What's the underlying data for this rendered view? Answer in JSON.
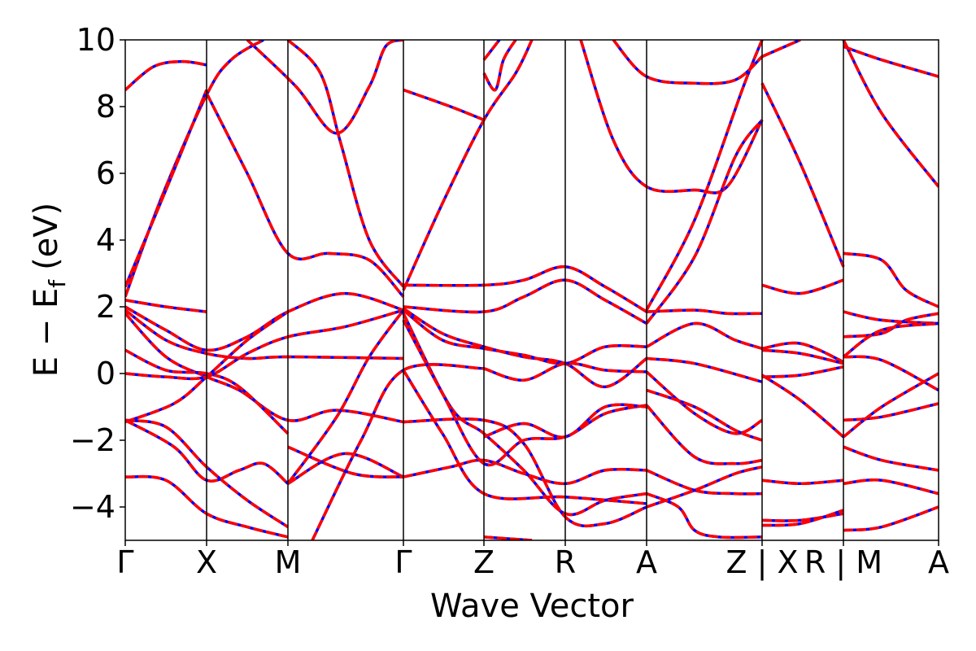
{
  "chart_data": {
    "type": "line",
    "title": "",
    "xlabel": "Wave Vector",
    "ylabel_main": "E − E",
    "ylabel_sub": "f",
    "ylabel_unit": "(eV)",
    "ylim": [
      -5,
      10
    ],
    "yticks": [
      -4,
      -2,
      0,
      2,
      4,
      6,
      8,
      10
    ],
    "ytick_labels": [
      "−4",
      "−2",
      "0",
      "2",
      "4",
      "6",
      "8",
      "10"
    ],
    "xlim": [
      0,
      10
    ],
    "kpoints": [
      {
        "label": "Γ",
        "x": 0.0
      },
      {
        "label": "X",
        "x": 1.0
      },
      {
        "label": "M",
        "x": 2.0
      },
      {
        "label": "Γ",
        "x": 3.42
      },
      {
        "label": "Z",
        "x": 4.41
      },
      {
        "label": "R",
        "x": 5.41
      },
      {
        "label": "A",
        "x": 6.41
      },
      {
        "label": "Z | X",
        "x": 7.83
      },
      {
        "label": "R | M",
        "x": 8.83
      },
      {
        "label": "A",
        "x": 10.0
      }
    ],
    "grid": false,
    "legend": "none",
    "series_styles": [
      {
        "color": "#0000ff",
        "style": "solid"
      },
      {
        "color": "#ff0000",
        "style": "dashed"
      }
    ],
    "segments": [
      [
        [
          0,
          8.5
        ],
        [
          0.35,
          9.2
        ],
        [
          0.7,
          9.35
        ],
        [
          1.0,
          9.25
        ]
      ],
      [
        [
          0,
          2.3
        ],
        [
          0.45,
          5.3
        ],
        [
          1.0,
          8.35
        ],
        [
          1.3,
          9.4
        ],
        [
          1.7,
          10.0
        ]
      ],
      [
        [
          0,
          2.6
        ],
        [
          0.5,
          5.5
        ],
        [
          1.0,
          8.5
        ]
      ],
      [
        [
          0,
          2.2
        ],
        [
          0.5,
          2.0
        ],
        [
          1.0,
          1.85
        ]
      ],
      [
        [
          0,
          2.0
        ],
        [
          0.5,
          1.3
        ],
        [
          1.0,
          0.7
        ],
        [
          1.5,
          1.1
        ],
        [
          2.0,
          1.85
        ],
        [
          2.7,
          2.4
        ],
        [
          3.42,
          1.9
        ]
      ],
      [
        [
          0,
          1.9
        ],
        [
          0.5,
          1.0
        ],
        [
          1.0,
          0.6
        ],
        [
          1.5,
          0.45
        ],
        [
          2.0,
          0.5
        ],
        [
          3.42,
          0.45
        ]
      ],
      [
        [
          0,
          1.8
        ],
        [
          0.5,
          0.5
        ],
        [
          1.0,
          -0.1
        ],
        [
          1.4,
          -0.5
        ],
        [
          2.0,
          -1.4
        ],
        [
          2.6,
          -1.1
        ],
        [
          3.42,
          -1.45
        ]
      ],
      [
        [
          0,
          0.7
        ],
        [
          0.5,
          0.1
        ],
        [
          1.0,
          0.0
        ],
        [
          1.4,
          -0.4
        ],
        [
          2.0,
          -1.8
        ]
      ],
      [
        [
          0,
          0.0
        ],
        [
          0.5,
          -0.1
        ],
        [
          1.0,
          -0.1
        ],
        [
          1.5,
          0.6
        ],
        [
          2.0,
          1.1
        ],
        [
          2.7,
          1.4
        ],
        [
          3.42,
          1.9
        ]
      ],
      [
        [
          0,
          -1.4
        ],
        [
          0.5,
          -1.6
        ],
        [
          1.0,
          -2.8
        ],
        [
          1.5,
          -3.8
        ],
        [
          2.0,
          -4.6
        ]
      ],
      [
        [
          0,
          -3.1
        ],
        [
          0.5,
          -3.2
        ],
        [
          1.0,
          -4.2
        ],
        [
          1.5,
          -4.6
        ],
        [
          2.0,
          -4.9
        ]
      ],
      [
        [
          0,
          -1.45
        ],
        [
          0.6,
          -0.9
        ],
        [
          1.0,
          -0.1
        ],
        [
          1.5,
          1.0
        ],
        [
          2.0,
          1.85
        ]
      ],
      [
        [
          0,
          -1.4
        ],
        [
          0.6,
          -2.2
        ],
        [
          1.0,
          -3.2
        ],
        [
          1.4,
          -2.9
        ],
        [
          1.7,
          -2.7
        ],
        [
          2.0,
          -3.3
        ]
      ],
      [
        [
          1.0,
          8.4
        ],
        [
          1.5,
          6.0
        ],
        [
          2.0,
          3.6
        ],
        [
          2.5,
          3.6
        ],
        [
          3.0,
          3.4
        ],
        [
          3.42,
          2.3
        ]
      ],
      [
        [
          1.5,
          10.0
        ],
        [
          2.1,
          8.6
        ],
        [
          2.6,
          7.2
        ],
        [
          3.0,
          8.6
        ],
        [
          3.2,
          9.8
        ],
        [
          3.42,
          10.0
        ]
      ],
      [
        [
          2.0,
          10.0
        ],
        [
          2.4,
          9.0
        ],
        [
          2.65,
          6.9
        ],
        [
          3.0,
          4.0
        ],
        [
          3.42,
          2.6
        ]
      ],
      [
        [
          2.0,
          -3.3
        ],
        [
          2.6,
          -1.3
        ],
        [
          3.0,
          0.5
        ],
        [
          3.42,
          1.9
        ]
      ],
      [
        [
          2.0,
          -3.3
        ],
        [
          2.7,
          -2.4
        ],
        [
          3.42,
          -3.1
        ]
      ],
      [
        [
          2.0,
          -2.2
        ],
        [
          2.8,
          -3.0
        ],
        [
          3.42,
          -3.1
        ]
      ],
      [
        [
          2.3,
          -5.0
        ],
        [
          2.9,
          -2.0
        ],
        [
          3.42,
          0.1
        ],
        [
          4.41,
          0.15
        ]
      ],
      [
        [
          3.42,
          8.5
        ],
        [
          4.0,
          8.0
        ],
        [
          4.41,
          7.6
        ]
      ],
      [
        [
          3.42,
          2.5
        ],
        [
          3.9,
          5.1
        ],
        [
          4.41,
          7.6
        ],
        [
          4.8,
          9.0
        ],
        [
          5.0,
          10.0
        ]
      ],
      [
        [
          3.42,
          2.65
        ],
        [
          4.41,
          2.65
        ],
        [
          4.9,
          2.8
        ],
        [
          5.41,
          3.2
        ],
        [
          5.9,
          2.6
        ],
        [
          6.41,
          1.85
        ]
      ],
      [
        [
          3.42,
          2.0
        ],
        [
          4.41,
          1.85
        ],
        [
          4.9,
          2.3
        ],
        [
          5.41,
          2.8
        ],
        [
          5.9,
          2.2
        ],
        [
          6.41,
          1.5
        ]
      ],
      [
        [
          3.42,
          1.95
        ],
        [
          3.9,
          1.2
        ],
        [
          4.41,
          0.8
        ],
        [
          4.9,
          0.5
        ],
        [
          5.41,
          0.3
        ],
        [
          5.9,
          -0.4
        ],
        [
          6.41,
          0.45
        ]
      ],
      [
        [
          3.42,
          1.9
        ],
        [
          3.9,
          1.0
        ],
        [
          4.41,
          0.75
        ],
        [
          4.9,
          0.55
        ],
        [
          5.41,
          0.3
        ],
        [
          5.9,
          0.8
        ],
        [
          6.41,
          0.8
        ]
      ],
      [
        [
          3.42,
          1.8
        ],
        [
          4.0,
          -1.0
        ],
        [
          4.41,
          -1.8
        ],
        [
          4.9,
          -2.9
        ],
        [
          5.41,
          -4.2
        ],
        [
          5.9,
          -3.8
        ],
        [
          6.41,
          -3.6
        ]
      ],
      [
        [
          3.42,
          -1.45
        ],
        [
          4.41,
          -1.4
        ],
        [
          4.9,
          -2.1
        ],
        [
          5.41,
          -4.3
        ],
        [
          5.9,
          -4.5
        ],
        [
          6.41,
          -4.0
        ]
      ],
      [
        [
          3.42,
          -3.1
        ],
        [
          4.0,
          -2.8
        ],
        [
          4.41,
          -2.6
        ],
        [
          4.9,
          -3.0
        ],
        [
          5.41,
          -3.3
        ],
        [
          5.9,
          -2.9
        ],
        [
          6.41,
          -2.9
        ]
      ],
      [
        [
          3.42,
          0.1
        ],
        [
          3.9,
          -1.8
        ],
        [
          4.41,
          -3.6
        ],
        [
          5.41,
          -3.7
        ],
        [
          6.41,
          -3.9
        ]
      ],
      [
        [
          3.42,
          1.6
        ],
        [
          3.9,
          -0.6
        ],
        [
          4.41,
          -2.7
        ],
        [
          4.9,
          -2.0
        ],
        [
          5.41,
          -1.9
        ],
        [
          5.9,
          -1.2
        ],
        [
          6.41,
          -0.95
        ]
      ],
      [
        [
          4.41,
          9.4
        ],
        [
          4.6,
          10.0
        ]
      ],
      [
        [
          4.41,
          9.0
        ],
        [
          4.55,
          8.5
        ],
        [
          4.65,
          9.4
        ],
        [
          4.8,
          10.0
        ]
      ],
      [
        [
          4.41,
          0.15
        ],
        [
          4.9,
          -0.2
        ],
        [
          5.41,
          0.3
        ],
        [
          5.9,
          0.1
        ],
        [
          6.41,
          0.05
        ]
      ],
      [
        [
          4.41,
          -1.9
        ],
        [
          4.9,
          -1.5
        ],
        [
          5.41,
          -1.9
        ],
        [
          5.9,
          -1.0
        ],
        [
          6.41,
          -1.0
        ]
      ],
      [
        [
          4.41,
          -4.9
        ],
        [
          5.0,
          -5.0
        ]
      ],
      [
        [
          5.6,
          10.0
        ],
        [
          6.0,
          7.0
        ],
        [
          6.41,
          5.6
        ],
        [
          7.0,
          5.5
        ],
        [
          7.4,
          5.6
        ],
        [
          7.83,
          7.6
        ]
      ],
      [
        [
          6.0,
          10.0
        ],
        [
          6.41,
          8.9
        ],
        [
          7.0,
          8.7
        ],
        [
          7.5,
          8.8
        ],
        [
          7.83,
          9.5
        ]
      ],
      [
        [
          6.41,
          1.85
        ],
        [
          7.0,
          1.9
        ],
        [
          7.4,
          1.8
        ],
        [
          7.83,
          1.8
        ]
      ],
      [
        [
          6.41,
          1.5
        ],
        [
          7.0,
          3.5
        ],
        [
          7.5,
          6.5
        ],
        [
          7.83,
          7.6
        ]
      ],
      [
        [
          6.41,
          1.9
        ],
        [
          7.0,
          4.6
        ],
        [
          7.6,
          8.6
        ],
        [
          7.83,
          10.0
        ]
      ],
      [
        [
          6.41,
          0.8
        ],
        [
          7.0,
          1.5
        ],
        [
          7.5,
          1.0
        ],
        [
          7.83,
          0.75
        ]
      ],
      [
        [
          6.41,
          0.45
        ],
        [
          7.0,
          0.3
        ],
        [
          7.83,
          -0.25
        ]
      ],
      [
        [
          6.41,
          0.05
        ],
        [
          7.0,
          -1.2
        ],
        [
          7.5,
          -1.8
        ],
        [
          7.83,
          -1.4
        ]
      ],
      [
        [
          6.41,
          -0.5
        ],
        [
          7.0,
          -1.0
        ],
        [
          7.5,
          -1.7
        ],
        [
          7.83,
          -2.0
        ]
      ],
      [
        [
          6.41,
          -2.9
        ],
        [
          7.0,
          -3.5
        ],
        [
          7.5,
          -3.6
        ],
        [
          7.83,
          -3.6
        ]
      ],
      [
        [
          6.41,
          -3.6
        ],
        [
          6.8,
          -4.0
        ],
        [
          7.0,
          -4.7
        ],
        [
          7.3,
          -4.9
        ],
        [
          7.83,
          -4.9
        ]
      ],
      [
        [
          6.41,
          -0.95
        ],
        [
          7.0,
          -2.5
        ],
        [
          7.5,
          -2.7
        ],
        [
          7.83,
          -2.6
        ]
      ],
      [
        [
          6.41,
          -4.0
        ],
        [
          7.0,
          -3.5
        ],
        [
          7.5,
          -3.0
        ],
        [
          7.83,
          -2.8
        ]
      ],
      [
        [
          7.83,
          8.7
        ],
        [
          8.3,
          6.3
        ],
        [
          8.83,
          3.2
        ]
      ],
      [
        [
          7.83,
          9.5
        ],
        [
          8.3,
          10.0
        ]
      ],
      [
        [
          7.83,
          2.65
        ],
        [
          8.3,
          2.4
        ],
        [
          8.83,
          2.8
        ]
      ],
      [
        [
          7.83,
          0.75
        ],
        [
          8.3,
          0.9
        ],
        [
          8.83,
          0.35
        ]
      ],
      [
        [
          7.83,
          0.7
        ],
        [
          8.3,
          0.6
        ],
        [
          8.83,
          0.3
        ]
      ],
      [
        [
          7.83,
          -0.05
        ],
        [
          8.3,
          -0.8
        ],
        [
          8.83,
          -1.9
        ]
      ],
      [
        [
          7.83,
          -0.1
        ],
        [
          8.3,
          -0.05
        ],
        [
          8.83,
          0.2
        ]
      ],
      [
        [
          7.83,
          -3.2
        ],
        [
          8.3,
          -3.3
        ],
        [
          8.83,
          -3.2
        ]
      ],
      [
        [
          7.83,
          -4.4
        ],
        [
          8.3,
          -4.4
        ],
        [
          8.83,
          -4.2
        ]
      ],
      [
        [
          7.83,
          -4.55
        ],
        [
          8.3,
          -4.5
        ],
        [
          8.83,
          -4.1
        ]
      ],
      [
        [
          8.83,
          10.0
        ],
        [
          9.3,
          7.8
        ],
        [
          10.0,
          5.6
        ]
      ],
      [
        [
          8.83,
          9.8
        ],
        [
          9.3,
          9.4
        ],
        [
          10.0,
          8.9
        ]
      ],
      [
        [
          8.83,
          3.6
        ],
        [
          9.3,
          3.4
        ],
        [
          9.6,
          2.5
        ],
        [
          10.0,
          2.0
        ]
      ],
      [
        [
          8.83,
          1.85
        ],
        [
          9.3,
          1.6
        ],
        [
          10.0,
          1.5
        ]
      ],
      [
        [
          8.83,
          1.1
        ],
        [
          9.3,
          1.2
        ],
        [
          9.6,
          1.6
        ],
        [
          10.0,
          1.8
        ]
      ],
      [
        [
          8.83,
          0.5
        ],
        [
          9.3,
          1.3
        ],
        [
          10.0,
          1.5
        ]
      ],
      [
        [
          8.83,
          0.5
        ],
        [
          9.3,
          0.4
        ],
        [
          10.0,
          -0.5
        ]
      ],
      [
        [
          8.83,
          -1.4
        ],
        [
          9.3,
          -1.3
        ],
        [
          10.0,
          -0.9
        ]
      ],
      [
        [
          8.83,
          -1.9
        ],
        [
          9.3,
          -1.0
        ],
        [
          10.0,
          0.0
        ]
      ],
      [
        [
          8.83,
          -2.2
        ],
        [
          9.3,
          -2.6
        ],
        [
          10.0,
          -2.9
        ]
      ],
      [
        [
          8.83,
          -3.3
        ],
        [
          9.3,
          -3.2
        ],
        [
          10.0,
          -3.6
        ]
      ],
      [
        [
          8.83,
          -4.7
        ],
        [
          9.3,
          -4.6
        ],
        [
          10.0,
          -4.0
        ]
      ]
    ]
  }
}
